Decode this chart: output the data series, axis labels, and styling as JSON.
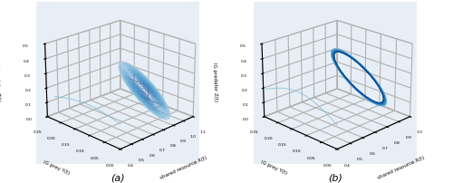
{
  "fig_width": 5.0,
  "fig_height": 2.03,
  "dpi": 100,
  "background_color": "#ffffff",
  "line_color": "#1565c0",
  "line_color_light": "#6baed6",
  "line_width": 0.6,
  "label_a": "(a)",
  "label_b": "(b)",
  "xlabel": "shared resource X(t)",
  "ylabel": "IG prey Y(t)",
  "zlabel": "IG predator Z(t)",
  "xlim_a": [
    0.4,
    1.1
  ],
  "ylim_a": [
    0.0,
    0.25
  ],
  "zlim_a": [
    0.0,
    0.5
  ],
  "xlim_b": [
    0.4,
    1.0
  ],
  "ylim_b": [
    0.0,
    0.25
  ],
  "zlim_b": [
    0.0,
    0.5
  ],
  "xticks_a": [
    0.4,
    0.5,
    0.6,
    0.7,
    0.8,
    0.9,
    1.0,
    1.1
  ],
  "yticks_a": [
    0.0,
    0.05,
    0.1,
    0.15,
    0.2,
    0.25
  ],
  "zticks_a": [
    0.0,
    0.1,
    0.2,
    0.3,
    0.4,
    0.5
  ],
  "xticks_b": [
    0.4,
    0.5,
    0.6,
    0.7,
    0.8,
    0.9,
    1.0
  ],
  "yticks_b": [
    0.0,
    0.05,
    0.1,
    0.15,
    0.2,
    0.25
  ],
  "zticks_b": [
    0.0,
    0.1,
    0.2,
    0.3,
    0.4,
    0.5
  ],
  "elev_a": 22,
  "azim_a": -135,
  "elev_b": 22,
  "azim_b": -135,
  "pane_color": "#e8eef5",
  "grid_color": "#ffffff"
}
